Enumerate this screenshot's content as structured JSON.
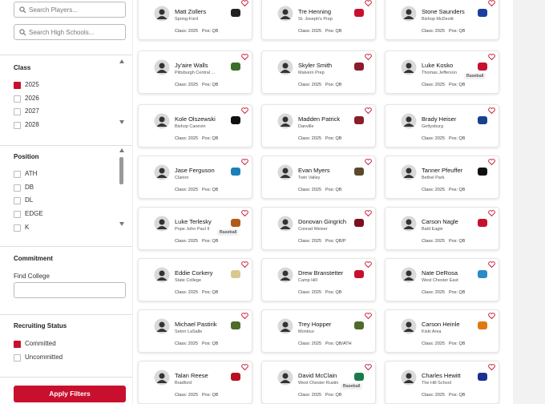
{
  "sidebar": {
    "search_players": "Search Players...",
    "search_schools": "Search High Schools...",
    "class_filter": {
      "title": "Class",
      "options": [
        {
          "label": "2025",
          "checked": true
        },
        {
          "label": "2026",
          "checked": false
        },
        {
          "label": "2027",
          "checked": false
        },
        {
          "label": "2028",
          "checked": false
        }
      ]
    },
    "position_filter": {
      "title": "Position",
      "options": [
        {
          "label": "ATH",
          "checked": false
        },
        {
          "label": "DB",
          "checked": false
        },
        {
          "label": "DL",
          "checked": false
        },
        {
          "label": "EDGE",
          "checked": false
        },
        {
          "label": "K",
          "checked": false
        }
      ]
    },
    "commitment": {
      "title": "Commitment",
      "field_label": "Find College"
    },
    "recruiting_status": {
      "title": "Recruiting Status",
      "options": [
        {
          "label": "Committed",
          "checked": true
        },
        {
          "label": "Uncommitted",
          "checked": false
        }
      ]
    },
    "apply_button": "Apply Filters"
  },
  "players": [
    {
      "name": "Matt Zollers",
      "school": "Spring-Ford",
      "class": "Class: 2025",
      "pos": "Pos: QB"
    },
    {
      "name": "Tre Henning",
      "school": "St. Joseph's Prep",
      "class": "Class: 2025",
      "pos": "Pos: QB"
    },
    {
      "name": "Stone Saunders",
      "school": "Bishop McDevitt",
      "class": "Class: 2025",
      "pos": "Pos: QB"
    },
    {
      "name": "Jy'aire Walls",
      "school": "Pittsburgh Central ...",
      "class": "Class: 2025",
      "pos": "Pos: QB"
    },
    {
      "name": "Skyler Smith",
      "school": "Malvern Prep",
      "class": "Class: 2025",
      "pos": "Pos: QB"
    },
    {
      "name": "Luke Kosko",
      "school": "Thomas Jefferson",
      "class": "Class: 2025",
      "pos": "Pos: QB",
      "badge": "Baseball"
    },
    {
      "name": "Kole Olszewski",
      "school": "Bishop Canevin",
      "class": "Class: 2025",
      "pos": "Pos: QB"
    },
    {
      "name": "Madden Patrick",
      "school": "Danville",
      "class": "Class: 2025",
      "pos": "Pos: QB"
    },
    {
      "name": "Brady Heiser",
      "school": "Gettysburg",
      "class": "Class: 2025",
      "pos": "Pos: QB"
    },
    {
      "name": "Jase Ferguson",
      "school": "Clarion",
      "class": "Class: 2025",
      "pos": "Pos: QB"
    },
    {
      "name": "Evan Myers",
      "school": "Twin Valley",
      "class": "Class: 2025",
      "pos": "Pos: QB"
    },
    {
      "name": "Tanner Pfeuffer",
      "school": "Bethel Park",
      "class": "Class: 2025",
      "pos": "Pos: QB"
    },
    {
      "name": "Luke Terlesky",
      "school": "Pope John Paul II",
      "class": "Class: 2025",
      "pos": "Pos: QB",
      "badge": "Baseball"
    },
    {
      "name": "Donovan Gingrich",
      "school": "Conrad Weiser",
      "class": "Class: 2025",
      "pos": "Pos: QB/P"
    },
    {
      "name": "Carson Nagle",
      "school": "Bald Eagle",
      "class": "Class: 2025",
      "pos": "Pos: QB"
    },
    {
      "name": "Eddie Corkery",
      "school": "State College",
      "class": "Class: 2025",
      "pos": "Pos: QB"
    },
    {
      "name": "Drew Branstetter",
      "school": "Camp Hill",
      "class": "Class: 2025",
      "pos": "Pos: QB"
    },
    {
      "name": "Nate DeRosa",
      "school": "West Chester East",
      "class": "Class: 2025",
      "pos": "Pos: QB"
    },
    {
      "name": "Michael Pastirik",
      "school": "Seton LaSalle",
      "class": "Class: 2025",
      "pos": "Pos: QB"
    },
    {
      "name": "Trey Hopper",
      "school": "Montour",
      "class": "Class: 2025",
      "pos": "Pos: QB/ATH"
    },
    {
      "name": "Carson Heinle",
      "school": "Kiski Area",
      "class": "Class: 2025",
      "pos": "Pos: QB"
    },
    {
      "name": "Talan Reese",
      "school": "Bradford",
      "class": "Class: 2025",
      "pos": "Pos: QB"
    },
    {
      "name": "David McClain",
      "school": "West Chester Rustin",
      "class": "Class: 2025",
      "pos": "Pos: QB",
      "badge": "Baseball"
    },
    {
      "name": "Charles Hewitt",
      "school": "The Hill School",
      "class": "Class: 2025",
      "pos": "Pos: QB"
    }
  ]
}
